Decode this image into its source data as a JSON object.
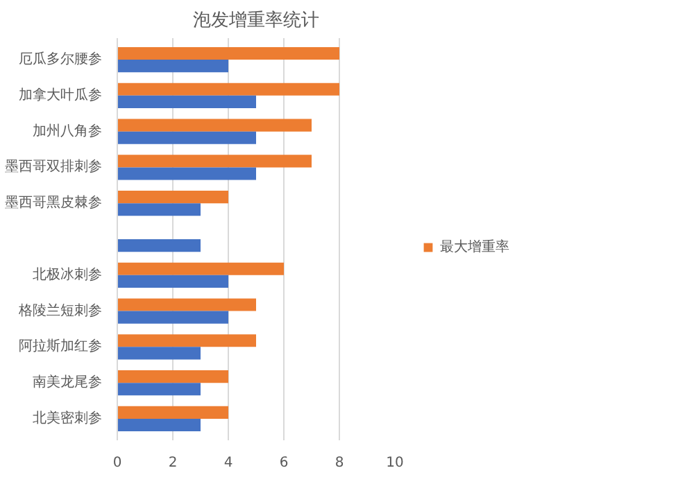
{
  "chart_data": {
    "type": "bar",
    "orientation": "horizontal",
    "title": "泡发增重率统计",
    "categories": [
      "厄瓜多尔腰参",
      "加拿大叶瓜参",
      "加州八角参",
      "墨西哥双排刺参",
      "墨西哥黑皮棘参",
      null,
      "北极冰刺参",
      "格陵兰短刺参",
      "阿拉斯加红参",
      "南美龙尾参",
      "北美密刺参"
    ],
    "series": [
      {
        "name": "最大增重率",
        "color": "#ed7d31",
        "values": [
          8,
          8,
          7,
          7,
          4,
          null,
          6,
          5,
          5,
          4,
          4
        ]
      },
      {
        "color": "#4472c4",
        "values": [
          4,
          5,
          5,
          5,
          3,
          3,
          4,
          4,
          3,
          3,
          3
        ]
      }
    ],
    "xlim": [
      0,
      10
    ],
    "xticks": [
      0,
      2,
      4,
      6,
      8,
      10
    ],
    "grid": "x",
    "legend": "right"
  }
}
